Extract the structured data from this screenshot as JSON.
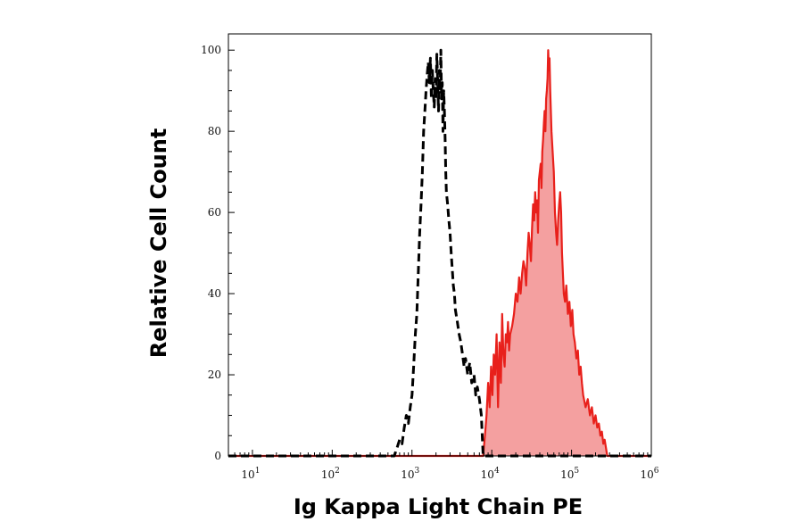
{
  "chart_data": {
    "type": "area",
    "xlabel": "Ig Kappa Light Chain PE",
    "ylabel": "Relative Cell Count",
    "x_scale": "log",
    "xlim": [
      5,
      1000000
    ],
    "ylim": [
      0,
      104
    ],
    "grid": false,
    "legend": "none",
    "y_ticks": [
      {
        "value": 0,
        "label": "0"
      },
      {
        "value": 20,
        "label": "20"
      },
      {
        "value": 40,
        "label": "40"
      },
      {
        "value": 60,
        "label": "60"
      },
      {
        "value": 80,
        "label": "80"
      },
      {
        "value": 100,
        "label": "100"
      }
    ],
    "x_ticks": [
      {
        "value": 10,
        "base": "10",
        "exp": "1"
      },
      {
        "value": 100,
        "base": "10",
        "exp": "2"
      },
      {
        "value": 1000,
        "base": "10",
        "exp": "3"
      },
      {
        "value": 10000,
        "base": "10",
        "exp": "4"
      },
      {
        "value": 100000,
        "base": "10",
        "exp": "5"
      },
      {
        "value": 1000000,
        "base": "10",
        "exp": "6"
      }
    ],
    "series": [
      {
        "style": "dashed",
        "color": "#000000",
        "x": [
          5,
          600,
          650,
          700,
          750,
          800,
          850,
          900,
          950,
          1000,
          1050,
          1100,
          1150,
          1200,
          1250,
          1300,
          1350,
          1400,
          1450,
          1500,
          1550,
          1600,
          1650,
          1700,
          1750,
          1800,
          1850,
          1900,
          1950,
          2000,
          2050,
          2100,
          2150,
          2200,
          2250,
          2300,
          2350,
          2400,
          2450,
          2500,
          2550,
          2600,
          2650,
          2700,
          2800,
          2900,
          3000,
          3100,
          3200,
          3300,
          3400,
          3500,
          3700,
          3900,
          4100,
          4300,
          4500,
          4700,
          5000,
          5300,
          5600,
          6000,
          6300,
          6600,
          7000,
          7400,
          7800,
          1000000
        ],
        "y": [
          0,
          0,
          2,
          4,
          3,
          7,
          10,
          8,
          12,
          15,
          22,
          30,
          35,
          45,
          55,
          62,
          70,
          80,
          85,
          90,
          94,
          97,
          92,
          98,
          88,
          95,
          90,
          86,
          93,
          88,
          99,
          92,
          85,
          95,
          90,
          100,
          88,
          92,
          80,
          90,
          85,
          78,
          70,
          65,
          62,
          58,
          55,
          50,
          46,
          42,
          40,
          36,
          33,
          30,
          28,
          25,
          22,
          24,
          20,
          23,
          18,
          20,
          15,
          17,
          14,
          10,
          0,
          0
        ]
      },
      {
        "style": "filled",
        "color": "#e8201b",
        "fill": "#f4a0a0",
        "x": [
          5,
          7800,
          8200,
          8600,
          9000,
          9400,
          9800,
          10200,
          10600,
          11000,
          11500,
          12000,
          12500,
          13000,
          13500,
          14000,
          14500,
          15000,
          15500,
          16000,
          16500,
          17000,
          18000,
          19000,
          20000,
          21000,
          22000,
          23000,
          24000,
          25000,
          26000,
          27000,
          28000,
          29000,
          30000,
          31000,
          32000,
          33000,
          34000,
          35000,
          36000,
          37000,
          38000,
          39000,
          40000,
          41000,
          42000,
          43000,
          44000,
          45000,
          46000,
          47000,
          48000,
          49000,
          50000,
          51000,
          52000,
          53000,
          54000,
          55000,
          56000,
          58000,
          60000,
          62000,
          64000,
          66000,
          68000,
          70000,
          72000,
          74000,
          76000,
          78000,
          80000,
          83000,
          86000,
          90000,
          94000,
          98000,
          102000,
          106000,
          110000,
          115000,
          120000,
          125000,
          130000,
          135000,
          140000,
          150000,
          160000,
          170000,
          180000,
          190000,
          200000,
          210000,
          220000,
          230000,
          240000,
          250000,
          260000,
          280000,
          300000,
          1000000
        ],
        "y": [
          0,
          0,
          5,
          10,
          18,
          12,
          22,
          15,
          25,
          20,
          30,
          12,
          28,
          18,
          35,
          25,
          22,
          30,
          28,
          33,
          26,
          30,
          32,
          35,
          40,
          38,
          44,
          40,
          45,
          48,
          46,
          42,
          50,
          55,
          52,
          48,
          56,
          62,
          58,
          65,
          60,
          63,
          55,
          68,
          70,
          72,
          66,
          75,
          78,
          82,
          85,
          80,
          88,
          90,
          93,
          100,
          95,
          98,
          90,
          85,
          80,
          75,
          70,
          60,
          55,
          52,
          58,
          62,
          65,
          60,
          50,
          45,
          40,
          38,
          42,
          35,
          38,
          32,
          36,
          30,
          28,
          24,
          26,
          20,
          22,
          18,
          15,
          12,
          14,
          10,
          12,
          8,
          10,
          7,
          8,
          5,
          6,
          3,
          4,
          0,
          0,
          0
        ]
      }
    ]
  }
}
